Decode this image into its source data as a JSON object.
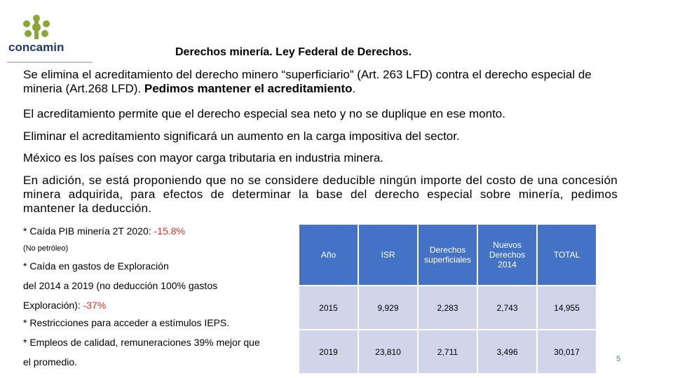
{
  "logo": {
    "name": "concamin"
  },
  "title": "Derechos minería. Ley Federal de Derechos.",
  "paragraphs": [
    {
      "text": "Se elimina el acreditamiento del derecho minero “superficiario” (Art. 263 LFD) contra el derecho especial de mineria (Art.268 LFD). ",
      "bold": "Pedimos mantener el acreditamiento",
      "end": "."
    },
    {
      "text": "El acreditamiento permite que el derecho especial sea neto y no se duplique en ese monto."
    },
    {
      "text": "Eliminar el acreditamiento significará un aumento en la carga impositiva del sector."
    },
    {
      "text": "México es los países con mayor carga tributaria en industria minera."
    },
    {
      "text": "En adición, se está proponiendo que no se considere deducible ningún importe del costo de una concesión minera adquirida, para efectos de determinar la base del derecho especial sobre minería, pedimos mantener la deducción."
    }
  ],
  "notes": [
    {
      "text": "* Caída PIB minería 2T 2020: ",
      "highlight": "-15.8%"
    },
    {
      "text": "(No petróleo)"
    },
    {
      "text": "* Caída en gastos de Exploración"
    },
    {
      "text": " del 2014 a 2019 (no deducción 100% gastos"
    },
    {
      "text": "Exploración): ",
      "highlight": "-37%"
    },
    {
      "text": "* Restricciones para acceder a estímulos IEPS."
    },
    {
      "text": "* Empleos de calidad, remuneraciones 39% mejor que"
    },
    {
      "text": "el promedio."
    }
  ],
  "table": {
    "header": [
      "Año",
      "ISR",
      "Derechos superficiales",
      "Nuevos Derechos 2014",
      "TOTAL"
    ],
    "rows": [
      [
        "2015",
        "9,929",
        "2,283",
        "2,743",
        "14,955"
      ],
      [
        "2019",
        "23,810",
        "2,711",
        "3,496",
        "30,017"
      ]
    ]
  },
  "page_number": "5"
}
